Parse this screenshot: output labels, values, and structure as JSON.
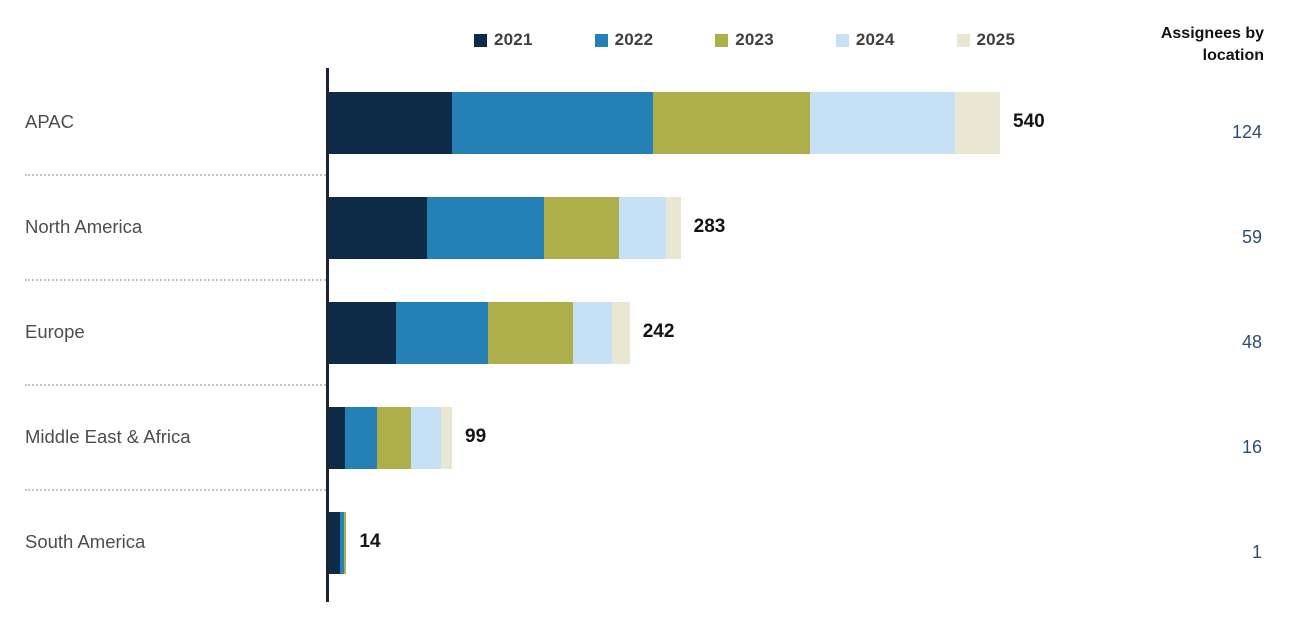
{
  "legend": {
    "items": [
      {
        "label": "2021",
        "color": "#0d2a47"
      },
      {
        "label": "2022",
        "color": "#2581b5"
      },
      {
        "label": "2023",
        "color": "#adb04a"
      },
      {
        "label": "2024",
        "color": "#c6e0f5"
      },
      {
        "label": "2025",
        "color": "#e9e6d1"
      }
    ]
  },
  "right_column": {
    "header": "Assignees by location",
    "values": [
      124,
      59,
      48,
      16,
      1
    ]
  },
  "chart_data": {
    "type": "bar",
    "orientation": "horizontal",
    "stacked": true,
    "title": "",
    "xlabel": "",
    "ylabel": "",
    "grid": false,
    "legend_position": "top",
    "xmax": 540,
    "categories": [
      "APAC",
      "North America",
      "Europe",
      "Middle East & Africa",
      "South America"
    ],
    "series": [
      {
        "name": "2021",
        "color": "#0d2a47",
        "values": [
          99,
          79,
          54,
          13,
          9
        ]
      },
      {
        "name": "2022",
        "color": "#2581b5",
        "values": [
          162,
          94,
          74,
          26,
          3
        ]
      },
      {
        "name": "2023",
        "color": "#adb04a",
        "values": [
          126,
          60,
          68,
          27,
          2
        ]
      },
      {
        "name": "2024",
        "color": "#c6e0f5",
        "values": [
          117,
          38,
          32,
          24,
          0
        ]
      },
      {
        "name": "2025",
        "color": "#e9e6d1",
        "values": [
          36,
          12,
          14,
          9,
          0
        ]
      }
    ],
    "totals": [
      540,
      283,
      242,
      99,
      14
    ],
    "assignees_by_location": [
      124,
      59,
      48,
      16,
      1
    ]
  },
  "colors": {
    "axis": "#1c2430",
    "row_label": "#4d4d4d",
    "total_label": "#141414",
    "assignee_value": "#2e4d73",
    "separator": "#c4c4c4",
    "background": "#ffffff"
  }
}
